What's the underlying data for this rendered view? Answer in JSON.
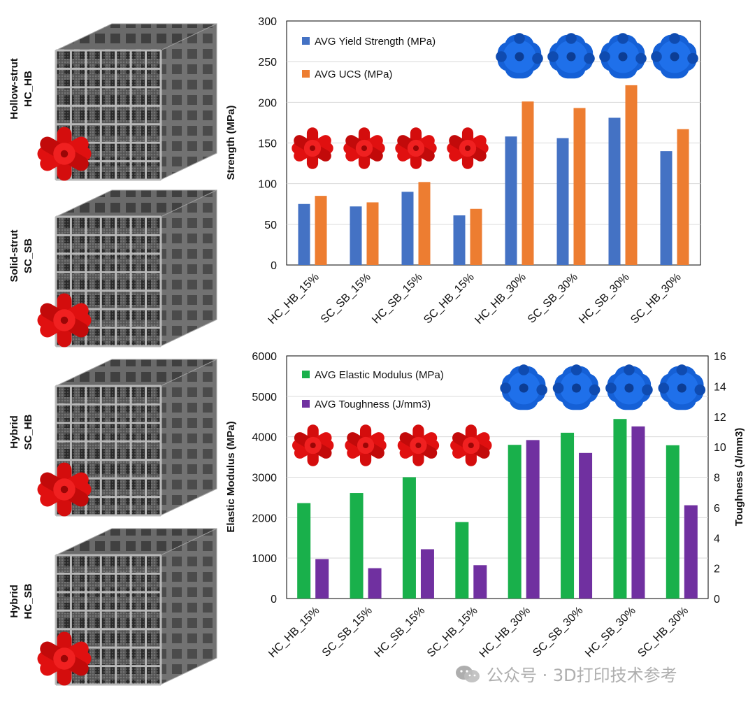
{
  "lattices": [
    {
      "label_line1": "Hollow-strut",
      "label_line2": "HC_HB",
      "node_color": "#e01010"
    },
    {
      "label_line1": "Solid-strut",
      "label_line2": "SC_SB",
      "node_color": "#e01010"
    },
    {
      "label_line1": "Hybrid",
      "label_line2": "SC_HB",
      "node_color": "#e01010"
    },
    {
      "label_line1": "Hybrid",
      "label_line2": "HC_SB",
      "node_color": "#e01010"
    }
  ],
  "colors": {
    "blue": "#4472c4",
    "orange": "#ed7d31",
    "green": "#19b04b",
    "purple": "#7030a0",
    "red_node": "#e01010",
    "blue_node": "#1560d6"
  },
  "chart_data": [
    {
      "type": "bar",
      "title": "",
      "xlabel": "",
      "ylabel": "Strength (MPa)",
      "ylim": [
        0,
        300
      ],
      "yticks": [
        0,
        50,
        100,
        150,
        200,
        250,
        300
      ],
      "categories": [
        "HC_HB_15%",
        "SC_SB_15%",
        "HC_SB_15%",
        "SC_HB_15%",
        "HC_HB_30%",
        "SC_SB_30%",
        "HC_SB_30%",
        "SC_HB_30%"
      ],
      "series": [
        {
          "name": "AVG Yield Strength (MPa)",
          "color": "#4472c4",
          "values": [
            75,
            72,
            90,
            61,
            158,
            156,
            181,
            140
          ]
        },
        {
          "name": "AVG UCS (MPa)",
          "color": "#ed7d31",
          "values": [
            85,
            77,
            102,
            69,
            201,
            193,
            221,
            167
          ]
        }
      ],
      "legend": "top-left"
    },
    {
      "type": "bar",
      "title": "",
      "xlabel": "",
      "ylabel": "Elastic Modulus (MPa)",
      "ylim": [
        0,
        6000
      ],
      "yticks": [
        0,
        1000,
        2000,
        3000,
        4000,
        5000,
        6000
      ],
      "ylabel_right": "Toughness (J/mm3)",
      "ylim_right": [
        0,
        16
      ],
      "yticks_right": [
        0,
        2,
        4,
        6,
        8,
        10,
        12,
        14,
        16
      ],
      "categories": [
        "HC_HB_15%",
        "SC_SB_15%",
        "HC_SB_15%",
        "SC_HB_15%",
        "HC_HB_30%",
        "SC_SB_30%",
        "HC_SB_30%",
        "SC_HB_30%"
      ],
      "series": [
        {
          "name": "AVG Elastic Modulus (MPa)",
          "color": "#19b04b",
          "axis": "left",
          "values": [
            2360,
            2610,
            3000,
            1890,
            3800,
            4100,
            4440,
            3790
          ]
        },
        {
          "name": "AVG Toughness (J/mm3)",
          "color": "#7030a0",
          "axis": "right",
          "values": [
            2.6,
            2.0,
            3.25,
            2.2,
            10.45,
            9.6,
            11.35,
            6.15
          ]
        }
      ],
      "legend": "top-left"
    }
  ],
  "watermark": {
    "text": "公众号 · 3D打印技术参考"
  }
}
